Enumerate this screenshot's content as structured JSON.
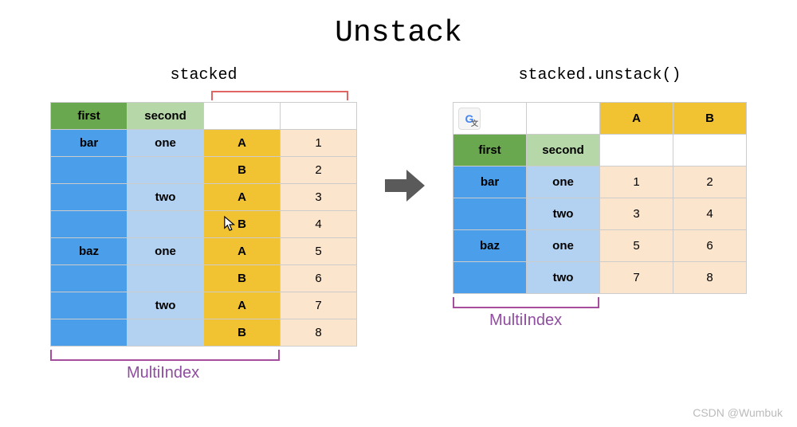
{
  "title": "Unstack",
  "left_label": "stacked",
  "right_label": "stacked.unstack()",
  "multiindex_label": "MultiIndex",
  "watermark": "CSDN @Wumbuk",
  "colors": {
    "green_header": "#6aa84f",
    "green_light": "#b6d7a8",
    "blue_header": "#4a9eea",
    "blue_light": "#b3d1f0",
    "orange_header": "#f1c232",
    "orange_light": "#fce5cd",
    "white": "#ffffff",
    "border": "#cccccc",
    "arrow": "#5a5a5a",
    "bracket_top": "#e06666",
    "bracket_bottom": "#a64d9e",
    "mi_text": "#8e4d9e"
  },
  "dims": {
    "left_cell_w": 96,
    "left_cell_h": 34,
    "right_cell_w": 92,
    "right_cell_h": 40
  },
  "left_table": {
    "headers": [
      "first",
      "second",
      "",
      ""
    ],
    "rows": [
      [
        "bar",
        "one",
        "A",
        "1"
      ],
      [
        "",
        "",
        "B",
        "2"
      ],
      [
        "",
        "two",
        "A",
        "3"
      ],
      [
        "",
        "",
        "B",
        "4"
      ],
      [
        "baz",
        "one",
        "A",
        "5"
      ],
      [
        "",
        "",
        "B",
        "6"
      ],
      [
        "",
        "two",
        "A",
        "7"
      ],
      [
        "",
        "",
        "B",
        "8"
      ]
    ],
    "col_bg": [
      "blue_light",
      "blue_light",
      "orange_header",
      "orange_light"
    ],
    "header_bg": [
      "green_header",
      "green_light",
      "white",
      "white"
    ]
  },
  "right_table": {
    "row0": [
      "",
      "",
      "A",
      "B"
    ],
    "row0_bg": [
      "white",
      "white",
      "orange_header",
      "orange_header"
    ],
    "row1": [
      "first",
      "second",
      "",
      ""
    ],
    "row1_bg": [
      "green_header",
      "green_light",
      "white",
      "white"
    ],
    "data": [
      [
        "bar",
        "one",
        "1",
        "2"
      ],
      [
        "",
        "two",
        "3",
        "4"
      ],
      [
        "baz",
        "one",
        "5",
        "6"
      ],
      [
        "",
        "two",
        "7",
        "8"
      ]
    ],
    "col_bg": [
      "blue_header",
      "blue_light",
      "orange_light",
      "orange_light"
    ]
  },
  "gicon": {
    "letter": "G",
    "sub": "文"
  }
}
